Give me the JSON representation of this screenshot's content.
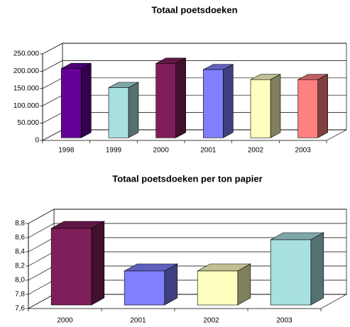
{
  "chart_data": [
    {
      "type": "bar3d",
      "title": "Totaal poetsdoeken",
      "categories": [
        "1998",
        "1999",
        "2000",
        "2001",
        "2002",
        "2003"
      ],
      "values": [
        200000,
        145000,
        215000,
        197000,
        168000,
        168000
      ],
      "colors": [
        "#660099",
        "#a8e0e0",
        "#7f1f5a",
        "#8080ff",
        "#ffffc0",
        "#ff8080"
      ],
      "ylim": [
        0,
        250000
      ],
      "yticks": [
        0,
        {
          "value": 50000,
          "label": "50.000"
        },
        {
          "value": 100000,
          "label": "100.000"
        },
        {
          "value": 150000,
          "label": "150.000"
        },
        {
          "value": 200000,
          "label": "200.000"
        },
        {
          "value": 250000,
          "label": "250.000"
        }
      ],
      "grid": true
    },
    {
      "type": "bar3d",
      "title": "Totaal poetsdoeken per ton papier",
      "categories": [
        "2000",
        "2001",
        "2002",
        "2003"
      ],
      "values": [
        8.68,
        8.08,
        8.08,
        8.52
      ],
      "colors": [
        "#7f1f5a",
        "#8080ff",
        "#ffffc0",
        "#a8e0e0"
      ],
      "ylim": [
        7.6,
        8.8
      ],
      "yticks": [
        {
          "value": 7.6,
          "label": "7,6"
        },
        {
          "value": 7.8,
          "label": "7,8"
        },
        {
          "value": 8.0,
          "label": "8,0"
        },
        {
          "value": 8.2,
          "label": "8,2"
        },
        {
          "value": 8.4,
          "label": "8,4"
        },
        {
          "value": 8.6,
          "label": "8,6"
        },
        {
          "value": 8.8,
          "label": "8,8"
        }
      ],
      "grid": true
    }
  ]
}
